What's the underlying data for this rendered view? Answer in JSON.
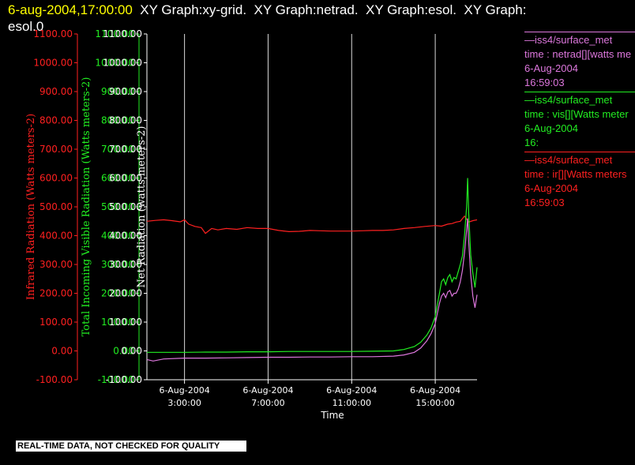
{
  "header": {
    "timestamp": "6-aug-2004,17:00:00",
    "title_rest": "  XY Graph:xy-grid.  XY Graph:netrad.  XY Graph:esol.  XY Graph:",
    "title_line2": "esol.0"
  },
  "notice": "REAL-TIME DATA, NOT CHECKED FOR QUALITY",
  "colors": {
    "background": "#000000",
    "ir": "#ff2020",
    "vis": "#22ee22",
    "net": "#dd77dd",
    "axis": "#ffffff",
    "grid": "#ffffff"
  },
  "legend": [
    {
      "series": "net",
      "color": "#dd77dd",
      "lines": [
        "—iss4/surface_met",
        "time : netrad[][watts me",
        "6-Aug-2004",
        "16:59:03"
      ]
    },
    {
      "series": "vis",
      "color": "#22ee22",
      "lines": [
        "—iss4/surface_met",
        "time : vis[][Watts meter",
        "6-Aug-2004",
        "16:"
      ]
    },
    {
      "series": "ir",
      "color": "#ff2020",
      "lines": [
        "—iss4/surface_met",
        "time : ir[][Watts meters",
        "6-Aug-2004",
        "16:59:03"
      ]
    }
  ],
  "chart_data": {
    "type": "line",
    "xlabel": "Time",
    "x_unit": "hours",
    "xlim": [
      1.2,
      17.0
    ],
    "x_ticks": [
      {
        "x": 3,
        "label1": "6-Aug-2004",
        "label2": "3:00:00"
      },
      {
        "x": 7,
        "label1": "6-Aug-2004",
        "label2": "7:00:00"
      },
      {
        "x": 11,
        "label1": "6-Aug-2004",
        "label2": "11:00:00"
      },
      {
        "x": 15,
        "label1": "6-Aug-2004",
        "label2": "15:00:00"
      }
    ],
    "y_axes": [
      {
        "id": "ir",
        "color": "#ff2020",
        "label": "Infrared Radiation (Watts meters-2)",
        "ylim": [
          -100,
          1100
        ],
        "ticks": [
          "-100.00",
          "0.00",
          "100.00",
          "200.00",
          "300.00",
          "400.00",
          "500.00",
          "600.00",
          "700.00",
          "800.00",
          "900.00",
          "1000.00",
          "1100.00"
        ]
      },
      {
        "id": "vis",
        "color": "#22ee22",
        "label": "Total Incoming Visible Radiation (Watts meters-2)",
        "ylim": [
          -100,
          1100
        ],
        "ticks": [
          "-100.00",
          "0.00",
          "100.00",
          "200.00",
          "300.00",
          "400.00",
          "500.00",
          "600.00",
          "700.00",
          "800.00",
          "900.00",
          "1000.00",
          "1100.00"
        ]
      },
      {
        "id": "net",
        "color": "#ffffff",
        "label": "Net Radiation (watts meters-2)",
        "ylim": [
          -100,
          1100
        ],
        "ticks": [
          "-100.00",
          "0.00",
          "100.00",
          "200.00",
          "300.00",
          "400.00",
          "500.00",
          "600.00",
          "700.00",
          "800.00",
          "900.00",
          "1000.00",
          "1100.00"
        ]
      }
    ],
    "grid": "vertical lines at time ticks",
    "series": [
      {
        "id": "ir",
        "color": "#ff2020",
        "x": [
          1.2,
          1.6,
          2.0,
          2.4,
          2.8,
          3.0,
          3.2,
          3.5,
          3.8,
          4.0,
          4.3,
          4.6,
          5.0,
          5.5,
          6.0,
          6.5,
          7.0,
          7.5,
          8.0,
          8.5,
          9.0,
          9.5,
          10.0,
          10.5,
          11.0,
          11.5,
          12.0,
          12.5,
          13.0,
          13.5,
          14.0,
          14.5,
          15.0,
          15.3,
          15.6,
          15.8,
          16.0,
          16.2,
          16.4,
          16.6,
          16.8,
          17.0
        ],
        "y": [
          450,
          453,
          455,
          452,
          448,
          455,
          440,
          432,
          428,
          408,
          425,
          420,
          425,
          422,
          428,
          425,
          425,
          418,
          414,
          415,
          418,
          417,
          416,
          416,
          416,
          417,
          418,
          418,
          420,
          425,
          428,
          432,
          435,
          433,
          440,
          442,
          447,
          450,
          468,
          447,
          452,
          455
        ]
      },
      {
        "id": "vis",
        "color": "#22ee22",
        "x": [
          1.2,
          2.0,
          3.0,
          4.0,
          5.0,
          6.0,
          7.0,
          8.0,
          9.0,
          10.0,
          11.0,
          12.0,
          13.0,
          13.5,
          14.0,
          14.3,
          14.6,
          14.8,
          15.0,
          15.1,
          15.2,
          15.3,
          15.4,
          15.5,
          15.6,
          15.7,
          15.8,
          15.9,
          16.0,
          16.1,
          16.2,
          16.3,
          16.4,
          16.5,
          16.55,
          16.6,
          16.7,
          16.8,
          16.9,
          17.0
        ],
        "y": [
          -5,
          -5,
          -5,
          -4,
          -4,
          -3,
          -3,
          -2,
          -2,
          -2,
          -2,
          -1,
          0,
          5,
          15,
          30,
          55,
          80,
          120,
          160,
          200,
          240,
          250,
          230,
          255,
          265,
          240,
          255,
          250,
          275,
          300,
          330,
          400,
          500,
          600,
          480,
          330,
          270,
          220,
          290
        ]
      },
      {
        "id": "net",
        "color": "#dd77dd",
        "x": [
          1.2,
          1.5,
          2.0,
          3.0,
          4.0,
          5.0,
          6.0,
          7.0,
          8.0,
          9.0,
          10.0,
          11.0,
          12.0,
          13.0,
          13.5,
          14.0,
          14.3,
          14.6,
          14.8,
          15.0,
          15.1,
          15.2,
          15.3,
          15.4,
          15.5,
          15.6,
          15.7,
          15.8,
          15.9,
          16.0,
          16.1,
          16.2,
          16.3,
          16.4,
          16.5,
          16.55,
          16.6,
          16.7,
          16.8,
          16.9,
          17.0
        ],
        "y": [
          -30,
          -35,
          -28,
          -25,
          -25,
          -24,
          -23,
          -22,
          -22,
          -21,
          -21,
          -20,
          -20,
          -18,
          -14,
          -5,
          10,
          35,
          60,
          95,
          130,
          165,
          190,
          200,
          185,
          205,
          210,
          190,
          200,
          200,
          215,
          240,
          280,
          340,
          420,
          460,
          380,
          260,
          190,
          150,
          195
        ]
      }
    ]
  }
}
